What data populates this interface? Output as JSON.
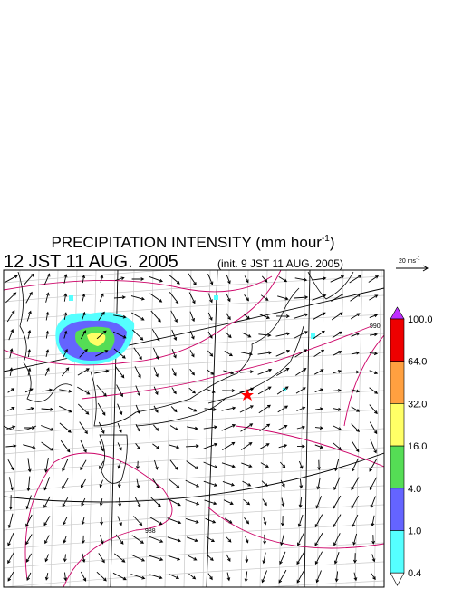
{
  "title": {
    "text": "PRECIPITATION INTENSITY (mm hour",
    "superscript": "-1",
    "close": ")"
  },
  "valid_time": "12 JST 11 AUG. 2005",
  "init_time": "(init. 9 JST 11 AUG. 2005)",
  "wind_scale": {
    "text": "20 ms",
    "superscript": "-1"
  },
  "isobar_labels": [
    "990",
    "988"
  ],
  "colorbar": {
    "ticks": [
      {
        "value": 100,
        "label": "100.0"
      },
      {
        "value": 64,
        "label": "64.0"
      },
      {
        "value": 32,
        "label": "32.0"
      },
      {
        "value": 16,
        "label": "16.0"
      },
      {
        "value": 4,
        "label": "4.0"
      },
      {
        "value": 1,
        "label": "1.0"
      },
      {
        "value": 0.4,
        "label": "0.4"
      }
    ],
    "colors": [
      "#ee0000",
      "#ffa040",
      "#ffff66",
      "#55dd55",
      "#6464ff",
      "#55ffff"
    ],
    "over_color": "#c030ff",
    "under_color": "#ffffff"
  }
}
